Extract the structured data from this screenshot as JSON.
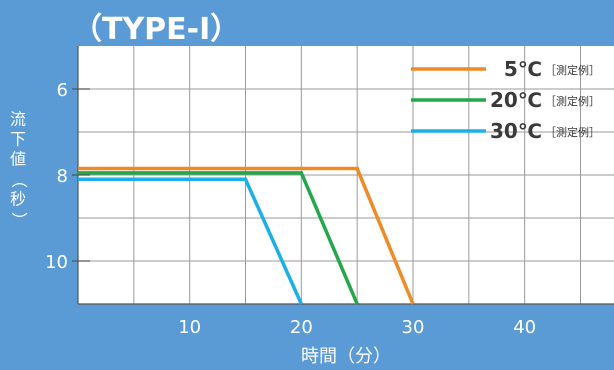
{
  "chart_data": {
    "type": "line",
    "title": "（TYPE-Ⅰ）",
    "xlabel": "時間（分）",
    "ylabel": "流下値（秒）",
    "x_ticks": [
      "10",
      "20",
      "30",
      "40"
    ],
    "y_ticks": [
      "6",
      "8",
      "10"
    ],
    "xlim": [
      0,
      48
    ],
    "ylim": [
      5.0,
      11.0
    ],
    "y_inverted": true,
    "grid": true,
    "legend_position": "top-right",
    "series": [
      {
        "name": "5℃",
        "note": "［測定例］",
        "color": "#f08a24",
        "points": [
          [
            0,
            7.85
          ],
          [
            25,
            7.85
          ],
          [
            30,
            11.0
          ]
        ]
      },
      {
        "name": "20℃",
        "note": "［測定例］",
        "color": "#22a84a",
        "points": [
          [
            0,
            7.95
          ],
          [
            20,
            7.95
          ],
          [
            25,
            11.0
          ]
        ]
      },
      {
        "name": "30℃",
        "note": "［測定例］",
        "color": "#1ab0e6",
        "points": [
          [
            0,
            8.1
          ],
          [
            15,
            8.1
          ],
          [
            20,
            11.0
          ]
        ]
      }
    ]
  }
}
